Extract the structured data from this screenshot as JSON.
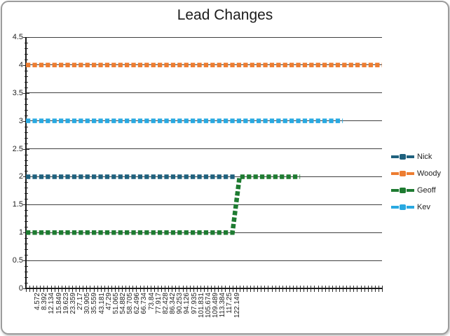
{
  "window": {
    "background": "#ffffff",
    "border_color": "#9c9c9c"
  },
  "chart_data": {
    "type": "line",
    "title": "Lead Changes",
    "xlabel": "",
    "ylabel": "",
    "ylim": [
      0,
      4.5
    ],
    "y_major_step": 0.5,
    "y_minor_step": 0.1,
    "y_tick_labels": [
      "0",
      "0.5",
      "1",
      "1.5",
      "2",
      "2.5",
      "3",
      "3.5",
      "4",
      "4.5"
    ],
    "grid": true,
    "legend_position": "right",
    "line_style": "thick-dashed-with-square-markers",
    "x_ticks_total": 101,
    "x_label_start_tick": 1,
    "x_label_every_n_ticks": 2,
    "x_label_rotation_deg": -90,
    "x_tick_labels": [
      "4.572",
      "8.392",
      "12.134",
      "15.849",
      "19.623",
      "23.359",
      "27.17",
      "30.905",
      "35.559",
      "43.181",
      "47.29",
      "51.065",
      "54.882",
      "58.705",
      "62.496",
      "66.734",
      "73.84",
      "77.917",
      "82.428",
      "86.342",
      "90.253",
      "94.126",
      "97.935",
      "101.831",
      "105.674",
      "109.489",
      "113.384",
      "117.25",
      "122.149"
    ],
    "series": [
      {
        "name": "Nick",
        "color": "#1F617E",
        "points": [
          [
            0,
            2
          ],
          [
            59,
            2
          ]
        ]
      },
      {
        "name": "Woody",
        "color": "#ED7D31",
        "points": [
          [
            0,
            4
          ],
          [
            100,
            4
          ]
        ]
      },
      {
        "name": "Geoff",
        "color": "#1E7B31",
        "points": [
          [
            0,
            1
          ],
          [
            58,
            1
          ],
          [
            60,
            2
          ],
          [
            77,
            2
          ]
        ]
      },
      {
        "name": "Kev",
        "color": "#29A9E1",
        "points": [
          [
            0,
            3
          ],
          [
            89,
            3
          ]
        ]
      }
    ],
    "axis_color": "#1a1a1a",
    "gridline_color": "#3f3f3f"
  }
}
